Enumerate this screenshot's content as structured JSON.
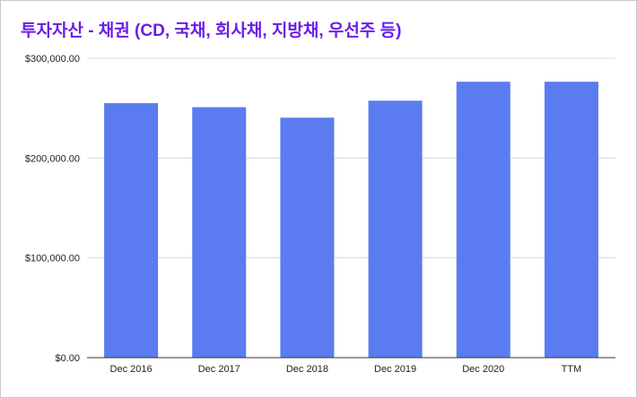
{
  "chart_data": {
    "type": "bar",
    "title": "투자자산 - 채권 (CD, 국채, 회사채, 지방채, 우선주 등)",
    "categories": [
      "Dec 2016",
      "Dec 2017",
      "Dec 2018",
      "Dec 2019",
      "Dec 2020",
      "TTM"
    ],
    "values": [
      255000,
      251000,
      240500,
      257500,
      276500,
      276500
    ],
    "ylim": [
      0,
      300000
    ],
    "yticks": [
      0,
      100000,
      200000,
      300000
    ],
    "ytick_labels": [
      "$0.00",
      "$100,000.00",
      "$200,000.00",
      "$300,000.00"
    ],
    "xlabel": "",
    "ylabel": "",
    "grid": true,
    "bar_color": "#5b7cf0",
    "title_color": "#6a1ee6"
  }
}
